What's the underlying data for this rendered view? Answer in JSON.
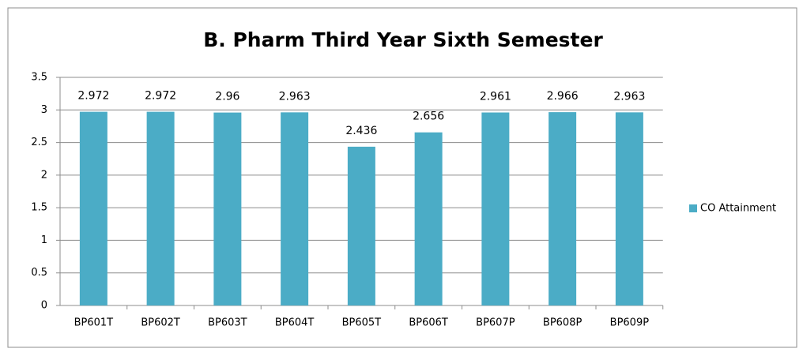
{
  "chart_data": {
    "type": "bar",
    "title": "B. Pharm Third Year Sixth Semester",
    "categories": [
      "BP601T",
      "BP602T",
      "BP603T",
      "BP604T",
      "BP605T",
      "BP606T",
      "BP607P",
      "BP608P",
      "BP609P"
    ],
    "series": [
      {
        "name": "CO Attainment",
        "color": "#4bacc6",
        "values": [
          2.972,
          2.972,
          2.96,
          2.963,
          2.436,
          2.656,
          2.961,
          2.966,
          2.963
        ]
      }
    ],
    "ylim": [
      0,
      3.5
    ],
    "yticks": [
      0,
      0.5,
      1,
      1.5,
      2,
      2.5,
      3,
      3.5
    ],
    "grid": true,
    "legend": "right"
  }
}
